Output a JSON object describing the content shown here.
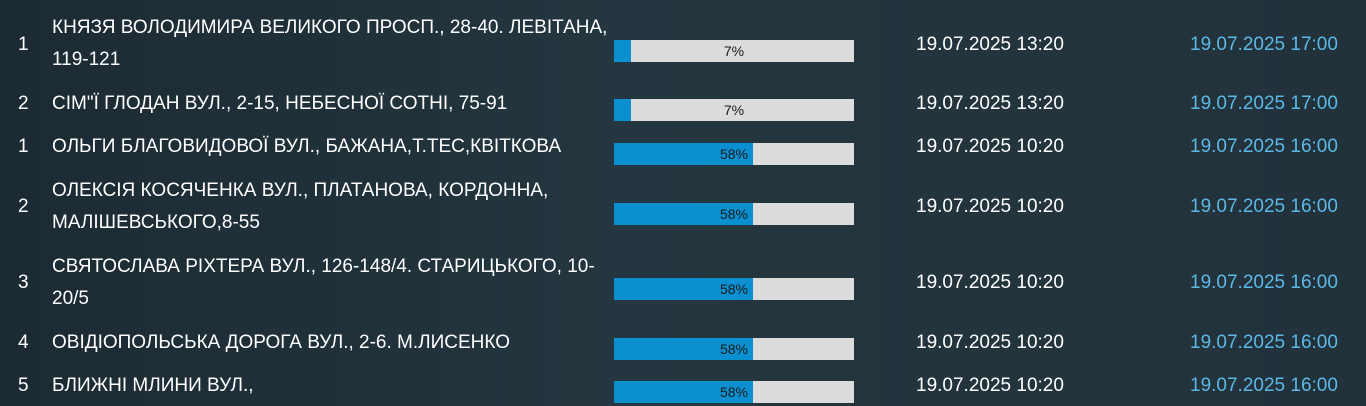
{
  "rows": [
    {
      "num": "1",
      "address": "КНЯЗЯ ВОЛОДИМИРА ВЕЛИКОГО ПРОСП., 28-40. ЛЕВІТАНА, 119-121",
      "progress_label": "7%",
      "progress": 7,
      "start": "19.07.2025 13:20",
      "end": "19.07.2025 17:00"
    },
    {
      "num": "2",
      "address": "СІМ\"Ї ГЛОДАН ВУЛ., 2-15, НЕБЕСНОЇ СОТНІ, 75-91",
      "progress_label": "7%",
      "progress": 7,
      "start": "19.07.2025 13:20",
      "end": "19.07.2025 17:00"
    },
    {
      "num": "1",
      "address": "ОЛЬГИ БЛАГОВИДОВОЇ ВУЛ., БАЖАНА,Т.ТЕС,КВІТКОВА",
      "progress_label": "58%",
      "progress": 58,
      "start": "19.07.2025 10:20",
      "end": "19.07.2025 16:00"
    },
    {
      "num": "2",
      "address": "ОЛЕКСІЯ КОСЯЧЕНКА ВУЛ., ПЛАТАНОВА, КОРДОННА, МАЛІШЕВСЬКОГО,8-55",
      "progress_label": "58%",
      "progress": 58,
      "start": "19.07.2025 10:20",
      "end": "19.07.2025 16:00"
    },
    {
      "num": "3",
      "address": "СВЯТОСЛАВА РІХТЕРА ВУЛ., 126-148/4. СТАРИЦЬКОГО, 10-20/5",
      "progress_label": "58%",
      "progress": 58,
      "start": "19.07.2025 10:20",
      "end": "19.07.2025 16:00"
    },
    {
      "num": "4",
      "address": "ОВІДІОПОЛЬСЬКА ДОРОГА ВУЛ., 2-6. М.ЛИСЕНКО",
      "progress_label": "58%",
      "progress": 58,
      "start": "19.07.2025 10:20",
      "end": "19.07.2025 16:00"
    },
    {
      "num": "5",
      "address": "БЛИЖНІ МЛИНИ ВУЛ.,",
      "progress_label": "58%",
      "progress": 58,
      "start": "19.07.2025 10:20",
      "end": "19.07.2025 16:00"
    }
  ]
}
